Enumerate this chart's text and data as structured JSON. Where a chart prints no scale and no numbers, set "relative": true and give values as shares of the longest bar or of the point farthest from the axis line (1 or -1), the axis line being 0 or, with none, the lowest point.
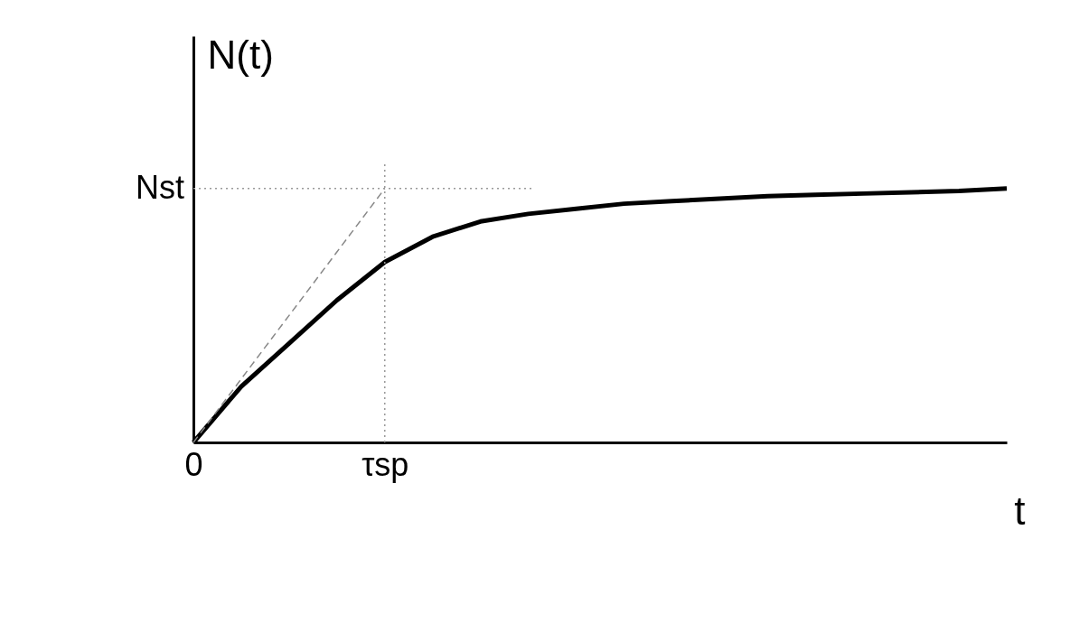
{
  "chart_data": {
    "type": "line",
    "xlabel": "t",
    "ylabel": "N(t)",
    "relative": true,
    "categories": [
      "0",
      null,
      null,
      null,
      "τsp",
      null,
      null,
      null,
      null,
      null,
      null,
      null,
      null,
      null,
      null,
      null,
      null,
      null
    ],
    "grid": false,
    "marker": "none",
    "ref_lines": [
      {
        "axis": "y",
        "value": 1,
        "label": "Nst",
        "color": "#999999",
        "line_style": "dotted"
      },
      {
        "axis": "x",
        "value": "τsp",
        "label": null,
        "color": "#999999",
        "line_style": "dotted"
      }
    ],
    "series": [
      {
        "color": "#000000",
        "line_style": "solid",
        "values": [
          0,
          0.22,
          0.39,
          0.56,
          0.71,
          0.81,
          0.87,
          0.9,
          0.92,
          0.94,
          0.95,
          0.96,
          0.97,
          0.975,
          0.98,
          0.985,
          0.99,
          1.0
        ]
      },
      {
        "color": "#888888",
        "line_style": "dashed",
        "values": [
          0,
          0.25,
          0.5,
          0.75,
          1,
          null,
          null,
          null,
          null,
          null,
          null,
          null,
          null,
          null,
          null,
          null,
          null,
          null
        ]
      }
    ]
  }
}
